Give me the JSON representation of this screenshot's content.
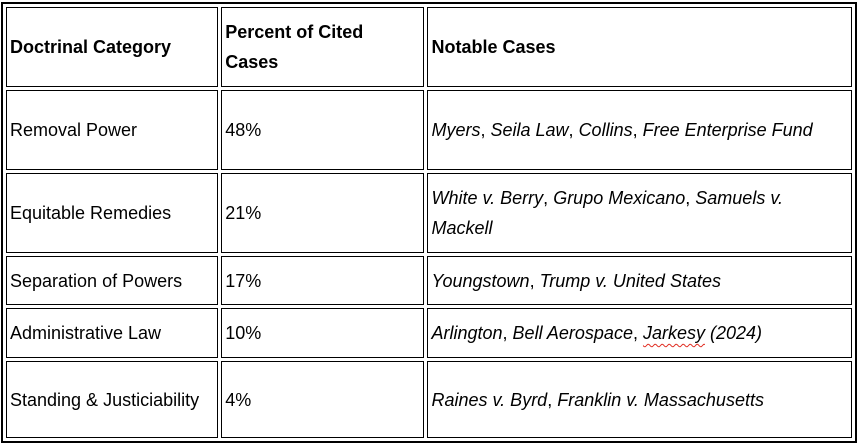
{
  "document": {
    "colors": {
      "background": "#ffffff",
      "text": "#000000",
      "border": "#000000",
      "spellcheck_underline": "#e02b20"
    }
  },
  "table": {
    "columns": [
      {
        "label": "Doctrinal Category"
      },
      {
        "label": "Percent of Cited Cases"
      },
      {
        "label": "Notable Cases"
      }
    ],
    "case_separator": ", ",
    "rows": [
      {
        "category": "Removal Power",
        "percent": "48%",
        "cases": [
          [
            {
              "text": "Myers"
            }
          ],
          [
            {
              "text": "Seila Law"
            }
          ],
          [
            {
              "text": "Collins"
            }
          ],
          [
            {
              "text": "Free Enterprise Fund"
            }
          ]
        ]
      },
      {
        "category": "Equitable Remedies",
        "percent": "21%",
        "cases": [
          [
            {
              "text": "White v. Berry"
            }
          ],
          [
            {
              "text": "Grupo Mexicano"
            }
          ],
          [
            {
              "text": "Samuels v. Mackell"
            }
          ]
        ]
      },
      {
        "category": "Separation of Powers",
        "percent": "17%",
        "cases": [
          [
            {
              "text": "Youngstown"
            }
          ],
          [
            {
              "text": "Trump v. United States"
            }
          ]
        ]
      },
      {
        "category": "Administrative Law",
        "percent": "10%",
        "cases": [
          [
            {
              "text": "Arlington"
            }
          ],
          [
            {
              "text": "Bell Aerospace"
            }
          ],
          [
            {
              "text": "Jarkesy",
              "spellcheck": true
            },
            {
              "text": " (2024)"
            }
          ]
        ]
      },
      {
        "category": "Standing & Justiciability",
        "percent": "4%",
        "cases": [
          [
            {
              "text": "Raines v. Byrd"
            }
          ],
          [
            {
              "text": "Franklin v. Massachusetts"
            }
          ]
        ]
      }
    ]
  }
}
